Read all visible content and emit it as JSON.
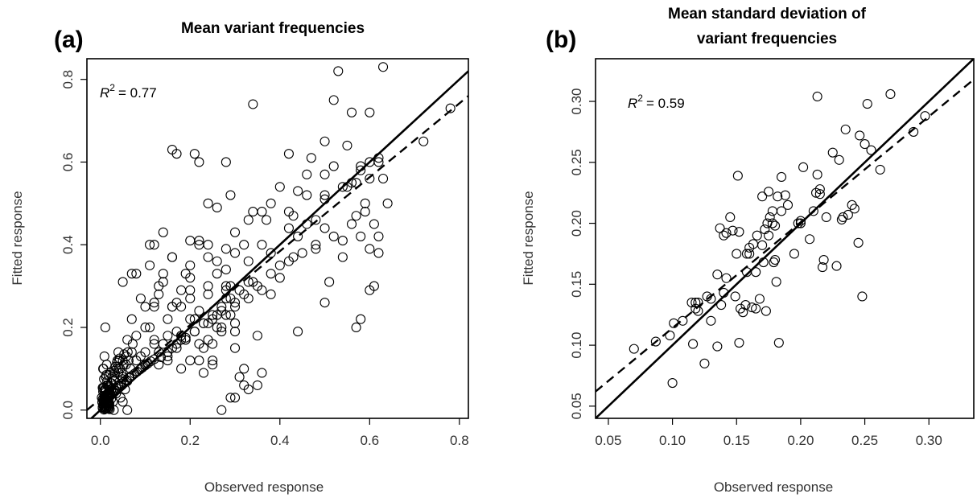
{
  "chart_data": [
    {
      "type": "scatter",
      "panel_label": "(a)",
      "title": "Mean variant frequencies",
      "xlabel": "Observed response",
      "ylabel": "Fitted response",
      "xlim": [
        -0.03,
        0.82
      ],
      "ylim": [
        -0.02,
        0.85
      ],
      "xticks": [
        "0.0",
        "0.2",
        "0.4",
        "0.6",
        "0.8"
      ],
      "yticks": [
        "0.0",
        "0.2",
        "0.4",
        "0.6",
        "0.8"
      ],
      "r2_label": "R",
      "r2_exp": "2",
      "r2_value": "= 0.77",
      "grid": false,
      "lines": [
        {
          "style": "solid",
          "x": [
            -0.03,
            0.82
          ],
          "y": [
            -0.03,
            0.82
          ]
        },
        {
          "style": "dashed",
          "x": [
            -0.03,
            0.82
          ],
          "y": [
            0.0,
            0.76
          ]
        }
      ],
      "series": [
        {
          "x": [
            0.005,
            0.006,
            0.007,
            0.008,
            0.009,
            0.01,
            0.011,
            0.012,
            0.013,
            0.014,
            0.015,
            0.016,
            0.017,
            0.018,
            0.019,
            0.02,
            0.003,
            0.005,
            0.008,
            0.01,
            0.012,
            0.014,
            0.016,
            0.018,
            0.02,
            0.022,
            0.006,
            0.009,
            0.011,
            0.013,
            0.015,
            0.017,
            0.019,
            0.021,
            0.004,
            0.007,
            0.009,
            0.012,
            0.016,
            0.02,
            0.024,
            0.028,
            0.005,
            0.01,
            0.015,
            0.02,
            0.025,
            0.03,
            0.008,
            0.012,
            0.018,
            0.022,
            0.006,
            0.014,
            0.028,
            0.035,
            0.04,
            0.045,
            0.05,
            0.055,
            0.06,
            0.032,
            0.038,
            0.044,
            0.052,
            0.058,
            0.065,
            0.07,
            0.025,
            0.03,
            0.036,
            0.042,
            0.048,
            0.05,
            0.009,
            0.011,
            0.007,
            0.013,
            0.015,
            0.017,
            0.008,
            0.011,
            0.014,
            0.019,
            0.023,
            0.026,
            0.031,
            0.034,
            0.037,
            0.041,
            0.043,
            0.047,
            0.049,
            0.053,
            0.057,
            0.061,
            0.063,
            0.067,
            0.072,
            0.008,
            0.01,
            0.012,
            0.015,
            0.018,
            0.012,
            0.008,
            0.01,
            0.015,
            0.018,
            0.02,
            0.006,
            0.013,
            0.005,
            0.007,
            0.009,
            0.011,
            0.013,
            0.016,
            0.02,
            0.025,
            0.03,
            0.035,
            0.04,
            0.046,
            0.052,
            0.058,
            0.064,
            0.07,
            0.076,
            0.082,
            0.088,
            0.094,
            0.1,
            0.106,
            0.112,
            0.12,
            0.135,
            0.15,
            0.16,
            0.17,
            0.18,
            0.19,
            0.21,
            0.23,
            0.25,
            0.27,
            0.29,
            0.31,
            0.33,
            0.07,
            0.08,
            0.09,
            0.1,
            0.11,
            0.12,
            0.13,
            0.14,
            0.15,
            0.16,
            0.17,
            0.18,
            0.19,
            0.2,
            0.21,
            0.22,
            0.23,
            0.24,
            0.25,
            0.26,
            0.27,
            0.28,
            0.29,
            0.3,
            0.12,
            0.14,
            0.16,
            0.18,
            0.2,
            0.22,
            0.24,
            0.26,
            0.28,
            0.3,
            0.32,
            0.34,
            0.36,
            0.38,
            0.4,
            0.42,
            0.44,
            0.46,
            0.48,
            0.5,
            0.52,
            0.54,
            0.56,
            0.58,
            0.6,
            0.62,
            0.16,
            0.21,
            0.24,
            0.28,
            0.34,
            0.37,
            0.42,
            0.44,
            0.46,
            0.5,
            0.52,
            0.55,
            0.58,
            0.6,
            0.62,
            0.64,
            0.72,
            0.78,
            0.63,
            0.53,
            0.56,
            0.5,
            0.47,
            0.44,
            0.38,
            0.4,
            0.43,
            0.46,
            0.48,
            0.5,
            0.54,
            0.57,
            0.59,
            0.61,
            0.28,
            0.3,
            0.32,
            0.25,
            0.27,
            0.29,
            0.33,
            0.36,
            0.38,
            0.4,
            0.2,
            0.22,
            0.24,
            0.26,
            0.18,
            0.2,
            0.22,
            0.24,
            0.15,
            0.17,
            0.19,
            0.13,
            0.15,
            0.1,
            0.12,
            0.06,
            0.09,
            0.11,
            0.14,
            0.16,
            0.18,
            0.2,
            0.22,
            0.24,
            0.26,
            0.28,
            0.3,
            0.32,
            0.34,
            0.36,
            0.29,
            0.27,
            0.31,
            0.3,
            0.33,
            0.35,
            0.42,
            0.43,
            0.5,
            0.51,
            0.57,
            0.58,
            0.6,
            0.62,
            0.58,
            0.56,
            0.6,
            0.62,
            0.54,
            0.57,
            0.59,
            0.61,
            0.63,
            0.6,
            0.55,
            0.5,
            0.48,
            0.52,
            0.45,
            0.42,
            0.38,
            0.35,
            0.33,
            0.3,
            0.27,
            0.25,
            0.23,
            0.21,
            0.19,
            0.17,
            0.15,
            0.13,
            0.11,
            0.28,
            0.3,
            0.33,
            0.36,
            0.29,
            0.24,
            0.26,
            0.22,
            0.2,
            0.18,
            0.17,
            0.16,
            0.14,
            0.12,
            0.1,
            0.08,
            0.06,
            0.05,
            0.04,
            0.03,
            0.02,
            0.015,
            0.01,
            0.03,
            0.01,
            0.06,
            0.13,
            0.12,
            0.1,
            0.09,
            0.08,
            0.07,
            0.05,
            0.04,
            0.2,
            0.23,
            0.25,
            0.28,
            0.3,
            0.32,
            0.35
          ],
          "y": [
            0.005,
            0.012,
            0.02,
            0.008,
            0.015,
            0.003,
            0.018,
            0.01,
            0.025,
            0.006,
            0.014,
            0.022,
            0.009,
            0.017,
            0.004,
            0.011,
            0.03,
            0.026,
            0.033,
            0.035,
            0.028,
            0.038,
            0.032,
            0.024,
            0.016,
            0.04,
            0.045,
            0.042,
            0.048,
            0.036,
            0.021,
            0.013,
            0.007,
            0.002,
            0.019,
            0.023,
            0.029,
            0.044,
            0.039,
            0.034,
            0.027,
            0.046,
            0.054,
            0.05,
            0.06,
            0.058,
            0.065,
            0.07,
            0.075,
            0.08,
            0.085,
            0.09,
            0.1,
            0.11,
            0.02,
            0.04,
            0.06,
            0.03,
            0.08,
            0.05,
            0.07,
            0.09,
            0.12,
            0.1,
            0.11,
            0.13,
            0.08,
            0.14,
            0.05,
            0.07,
            0.1,
            0.12,
            0.06,
            0.02,
            0.13,
            0.2,
            0.1,
            0.085,
            0.07,
            0.06,
            0.055,
            0.048,
            0.035,
            0.055,
            0.065,
            0.08,
            0.095,
            0.105,
            0.115,
            0.1,
            0.125,
            0.09,
            0.075,
            0.135,
            0.11,
            0.14,
            0.12,
            0.1,
            0.16,
            0.001,
            0.004,
            0.009,
            0.013,
            0.018,
            0.022,
            0.026,
            0.031,
            0.036,
            0.041,
            0.047,
            0.052,
            0.003,
            0.007,
            0.012,
            0.016,
            0.021,
            0.027,
            0.032,
            0.037,
            0.043,
            0.049,
            0.054,
            0.059,
            0.064,
            0.068,
            0.073,
            0.078,
            0.083,
            0.088,
            0.093,
            0.098,
            0.103,
            0.108,
            0.113,
            0.118,
            0.123,
            0.128,
            0.14,
            0.15,
            0.16,
            0.17,
            0.175,
            0.19,
            0.21,
            0.23,
            0.25,
            0.27,
            0.29,
            0.31,
            0.33,
            0.12,
            0.27,
            0.14,
            0.4,
            0.25,
            0.3,
            0.43,
            0.18,
            0.37,
            0.26,
            0.1,
            0.33,
            0.35,
            0.22,
            0.4,
            0.15,
            0.3,
            0.16,
            0.36,
            0.2,
            0.29,
            0.52,
            0.38,
            0.4,
            0.16,
            0.25,
            0.18,
            0.32,
            0.16,
            0.28,
            0.2,
            0.34,
            0.21,
            0.28,
            0.31,
            0.29,
            0.38,
            0.35,
            0.44,
            0.42,
            0.52,
            0.4,
            0.57,
            0.59,
            0.54,
            0.55,
            0.58,
            0.56,
            0.61,
            0.63,
            0.62,
            0.5,
            0.6,
            0.74,
            0.46,
            0.62,
            0.19,
            0.57,
            0.52,
            0.75,
            0.64,
            0.59,
            0.72,
            0.6,
            0.5,
            0.65,
            0.73,
            0.83,
            0.82,
            0.72,
            0.65,
            0.61,
            0.53,
            0.5,
            0.54,
            0.47,
            0.45,
            0.39,
            0.44,
            0.41,
            0.55,
            0.48,
            0.3,
            0.27,
            0.25,
            0.06,
            0.12,
            0.19,
            0.23,
            0.36,
            0.4,
            0.28,
            0.32,
            0.29,
            0.41,
            0.37,
            0.33,
            0.29,
            0.27,
            0.24,
            0.21,
            0.22,
            0.19,
            0.17,
            0.14,
            0.12,
            0.11,
            0.16,
            0.07,
            0.1,
            0.2,
            0.33,
            0.25,
            0.18,
            0.22,
            0.12,
            0.17,
            0.23,
            0.3,
            0.19,
            0.4,
            0.48,
            0.09,
            0.03,
            0.0,
            0.08,
            0.03,
            0.05,
            0.18,
            0.48,
            0.37,
            0.26,
            0.31,
            0.2,
            0.22,
            0.29,
            0.38,
            0.42,
            0.45,
            0.39,
            0.42,
            0.37,
            0.47,
            0.5,
            0.45,
            0.56,
            0.6,
            0.54,
            0.51,
            0.46,
            0.42,
            0.38,
            0.36,
            0.33,
            0.3,
            0.27,
            0.26,
            0.24,
            0.22,
            0.21,
            0.19,
            0.17,
            0.15,
            0.13,
            0.11,
            0.35,
            0.39,
            0.43,
            0.46,
            0.48,
            0.3,
            0.4,
            0.49,
            0.6,
            0.41,
            0.25,
            0.62,
            0.37,
            0.31,
            0.26,
            0.2,
            0.33,
            0.17,
            0.12,
            0.09,
            0.07,
            0.05,
            0.03,
            0.01,
            0.0,
            0.03,
            0.0,
            0.28,
            0.17,
            0.25,
            0.13,
            0.18,
            0.22,
            0.31,
            0.14,
            0.12,
            0.09,
            0.11,
            0.23,
            0.15,
            0.1,
            0.06
          ]
        }
      ]
    },
    {
      "type": "scatter",
      "panel_label": "(b)",
      "title_line1": "Mean standard deviation of",
      "title_line2": "variant frequencies",
      "xlabel": "Observed response",
      "ylabel": "Fitted response",
      "xlim": [
        0.04,
        0.335
      ],
      "ylim": [
        0.04,
        0.335
      ],
      "xticks": [
        "0.05",
        "0.10",
        "0.15",
        "0.20",
        "0.25",
        "0.30"
      ],
      "yticks": [
        "0.05",
        "0.10",
        "0.15",
        "0.20",
        "0.25",
        "0.30"
      ],
      "r2_label": "R",
      "r2_exp": "2",
      "r2_value": "= 0.59",
      "grid": false,
      "lines": [
        {
          "style": "solid",
          "x": [
            0.04,
            0.335
          ],
          "y": [
            0.04,
            0.335
          ]
        },
        {
          "style": "dashed",
          "x": [
            0.04,
            0.335
          ],
          "y": [
            0.062,
            0.318
          ]
        }
      ],
      "series": [
        {
          "x": [
            0.07,
            0.087,
            0.098,
            0.1,
            0.101,
            0.108,
            0.115,
            0.116,
            0.118,
            0.12,
            0.125,
            0.127,
            0.13,
            0.135,
            0.137,
            0.138,
            0.14,
            0.142,
            0.145,
            0.147,
            0.149,
            0.15,
            0.151,
            0.152,
            0.153,
            0.155,
            0.157,
            0.158,
            0.16,
            0.162,
            0.163,
            0.165,
            0.166,
            0.168,
            0.17,
            0.171,
            0.172,
            0.173,
            0.174,
            0.175,
            0.176,
            0.178,
            0.179,
            0.18,
            0.181,
            0.182,
            0.183,
            0.185,
            0.188,
            0.19,
            0.195,
            0.198,
            0.2,
            0.202,
            0.21,
            0.212,
            0.213,
            0.215,
            0.217,
            0.22,
            0.225,
            0.228,
            0.23,
            0.232,
            0.233,
            0.235,
            0.237,
            0.24,
            0.242,
            0.245,
            0.246,
            0.248,
            0.25,
            0.252,
            0.255,
            0.262,
            0.27,
            0.288,
            0.297,
            0.152,
            0.16,
            0.175,
            0.12,
            0.13,
            0.14,
            0.165,
            0.178,
            0.18,
            0.185,
            0.2,
            0.207,
            0.213,
            0.215,
            0.218,
            0.118,
            0.135,
            0.17,
            0.158,
            0.142
          ],
          "y": [
            0.097,
            0.103,
            0.108,
            0.069,
            0.118,
            0.12,
            0.135,
            0.101,
            0.13,
            0.135,
            0.085,
            0.14,
            0.138,
            0.099,
            0.196,
            0.133,
            0.19,
            0.155,
            0.205,
            0.194,
            0.14,
            0.175,
            0.239,
            0.102,
            0.13,
            0.127,
            0.133,
            0.175,
            0.175,
            0.131,
            0.183,
            0.16,
            0.19,
            0.138,
            0.222,
            0.168,
            0.195,
            0.128,
            0.2,
            0.19,
            0.205,
            0.21,
            0.168,
            0.17,
            0.152,
            0.222,
            0.102,
            0.238,
            0.223,
            0.215,
            0.175,
            0.2,
            0.202,
            0.246,
            0.21,
            0.225,
            0.304,
            0.228,
            0.164,
            0.205,
            0.258,
            0.165,
            0.252,
            0.203,
            0.205,
            0.277,
            0.207,
            0.215,
            0.212,
            0.184,
            0.272,
            0.14,
            0.265,
            0.298,
            0.26,
            0.244,
            0.306,
            0.275,
            0.288,
            0.193,
            0.18,
            0.226,
            0.128,
            0.12,
            0.143,
            0.13,
            0.2,
            0.198,
            0.21,
            0.2,
            0.187,
            0.24,
            0.224,
            0.17,
            0.135,
            0.158,
            0.182,
            0.16,
            0.192
          ]
        }
      ]
    }
  ]
}
